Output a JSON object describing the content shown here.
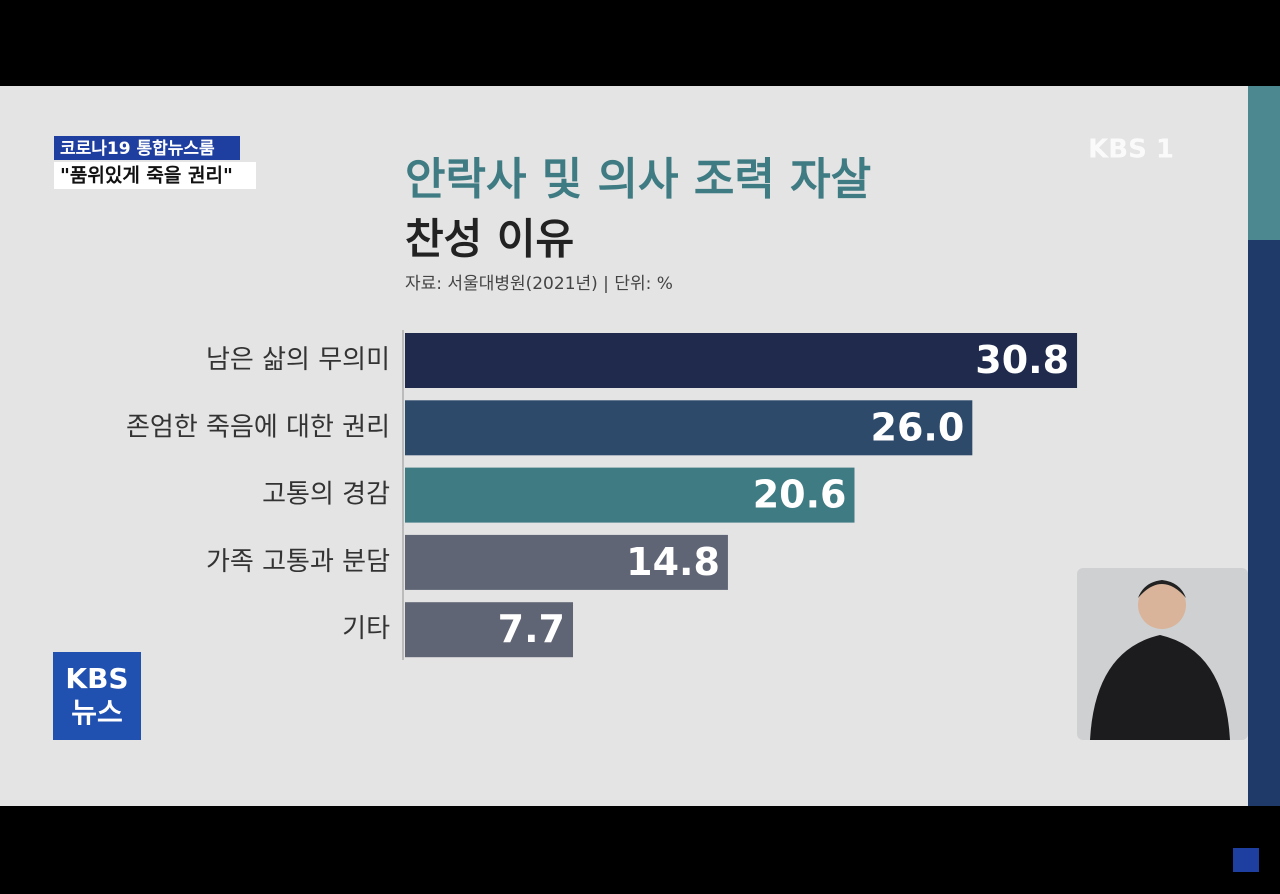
{
  "chart_data": {
    "type": "bar",
    "orientation": "horizontal",
    "title": "안락사 및 의사 조력 자살",
    "subtitle": "찬성 이유",
    "source": "자료: 서울대병원(2021년) | 단위: %",
    "categories": [
      "남은 삶의 무의미",
      "존엄한 죽음에 대한 권리",
      "고통의 경감",
      "가족 고통과 분담",
      "기타"
    ],
    "values": [
      30.8,
      26.0,
      20.6,
      14.8,
      7.7
    ],
    "value_labels": [
      "30.8",
      "26.0",
      "20.6",
      "14.8",
      "7.7"
    ],
    "colors": [
      "#1f2a4d",
      "#2d4a6b",
      "#3f7b82",
      "#5f6575",
      "#5f6575"
    ]
  },
  "overlay": {
    "program": "코로나19 통합뉴스룸",
    "headline": "\"품위있게 죽을 권리\"",
    "channel_logo": "KBS 1",
    "news_logo_top": "KBS",
    "news_logo_bottom": "뉴스"
  }
}
